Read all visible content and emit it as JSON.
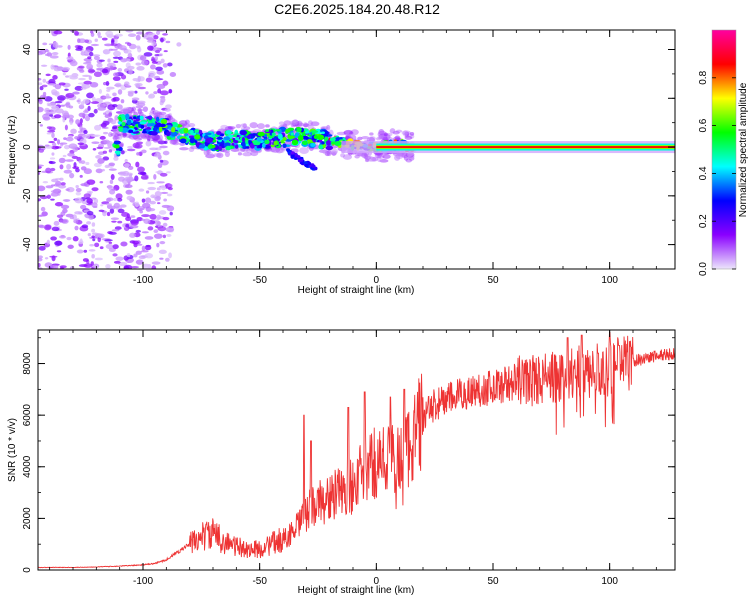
{
  "title": "C2E6.2025.184.20.48.R12",
  "chart_data": [
    {
      "type": "heatmap",
      "xlabel": "Height of straight line (km)",
      "ylabel": "Frequency (Hz)",
      "xlim": [
        -145,
        128
      ],
      "ylim": [
        -50,
        48
      ],
      "xticks": [
        -100,
        -50,
        0,
        50,
        100
      ],
      "yticks": [
        -40,
        -20,
        0,
        20,
        40
      ],
      "grid": false,
      "colorbar": {
        "label": "Normalized spectral amplitude",
        "range": [
          0,
          1
        ],
        "ticks": [
          "0.0",
          "0.2",
          "0.4",
          "0.6",
          "0.8"
        ],
        "stops": [
          "#ece6fb",
          "#8a00ff",
          "#0000ff",
          "#00ffff",
          "#00ff00",
          "#ffff00",
          "#ff0000",
          "#ff00a0"
        ]
      },
      "features": [
        {
          "name": "noise region",
          "x_range": [
            -145,
            -88
          ],
          "y_range": [
            -50,
            48
          ],
          "level": 0.15
        },
        {
          "name": "signal track",
          "points": [
            [
              -110,
              10
            ],
            [
              -90,
              8
            ],
            [
              -80,
              4
            ],
            [
              -70,
              2
            ],
            [
              -60,
              3
            ],
            [
              -50,
              3
            ],
            [
              -40,
              4
            ],
            [
              -30,
              4
            ],
            [
              -20,
              3
            ],
            [
              -10,
              1
            ],
            [
              0,
              0
            ],
            [
              10,
              1
            ],
            [
              15,
              0
            ],
            [
              128,
              0
            ]
          ]
        },
        {
          "name": "tone line",
          "y": 0,
          "x_range": [
            0,
            128
          ],
          "level": 0.85
        }
      ]
    },
    {
      "type": "line",
      "xlabel": "Height of straight line (km)",
      "ylabel": "SNR (10 * v/v)",
      "xlim": [
        -145,
        128
      ],
      "ylim": [
        0,
        9300
      ],
      "xticks": [
        -100,
        -50,
        0,
        50,
        100
      ],
      "yticks": [
        0,
        2000,
        4000,
        6000,
        8000
      ],
      "grid": false,
      "series": [
        {
          "color": "#ee3333",
          "x": [
            -145,
            -130,
            -120,
            -110,
            -100,
            -95,
            -90,
            -85,
            -80,
            -75,
            -70,
            -65,
            -60,
            -55,
            -50,
            -45,
            -40,
            -35,
            -30,
            -25,
            -20,
            -15,
            -10,
            -5,
            0,
            5,
            10,
            15,
            20,
            25,
            30,
            40,
            50,
            60,
            70,
            80,
            90,
            95,
            100,
            105,
            110,
            120,
            128
          ],
          "y": [
            100,
            100,
            120,
            150,
            200,
            250,
            400,
            700,
            1000,
            1300,
            1400,
            1100,
            900,
            800,
            800,
            1000,
            1200,
            1500,
            2200,
            2600,
            2800,
            3000,
            3300,
            3800,
            4200,
            4300,
            4200,
            5000,
            5900,
            6400,
            6600,
            6900,
            7100,
            7300,
            7400,
            7500,
            7700,
            7800,
            7800,
            8000,
            8100,
            8300,
            8400
          ]
        }
      ]
    }
  ]
}
